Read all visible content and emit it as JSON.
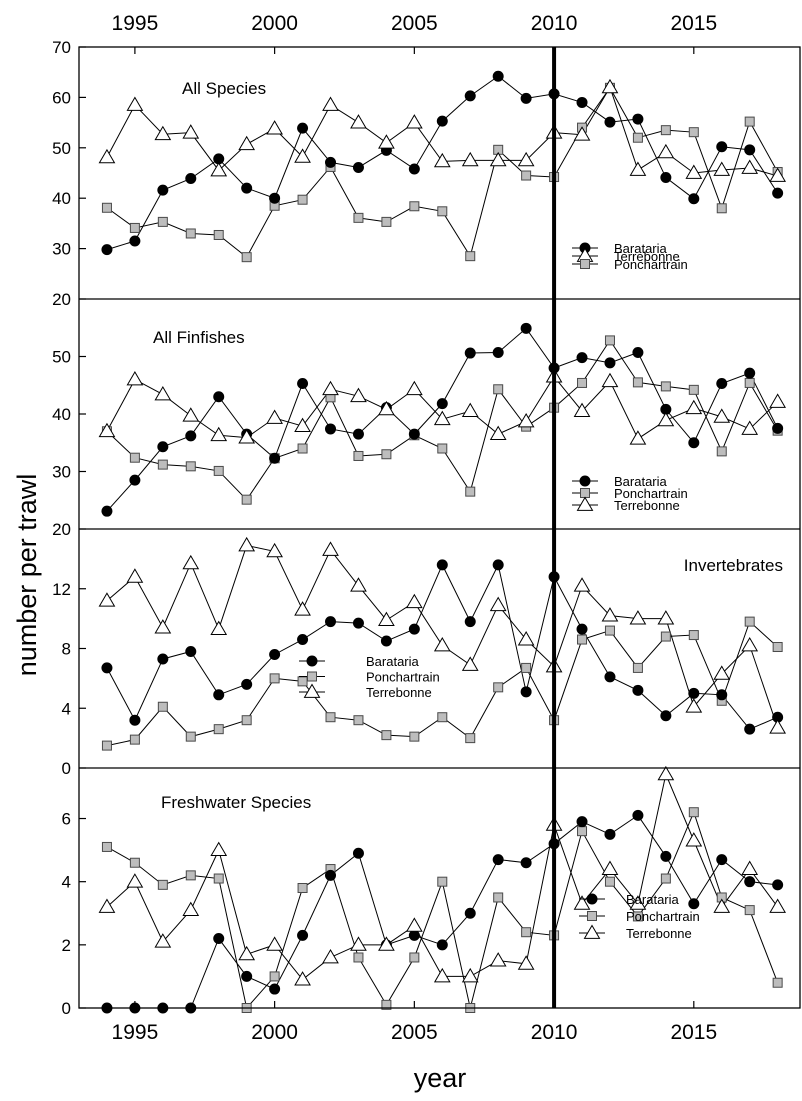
{
  "figure": {
    "ylabel": "number per trawl",
    "xlabel": "year",
    "x_ticks": [
      1995,
      2000,
      2005,
      2010,
      2015
    ],
    "xlim": [
      1993,
      2018.8
    ],
    "reference_year": 2010
  },
  "chart_data": [
    {
      "type": "line",
      "title": "All Species",
      "legend_position": "right",
      "ylim": [
        20,
        70
      ],
      "y_ticks": [
        20,
        30,
        40,
        50,
        60,
        70
      ],
      "x": [
        1994,
        1995,
        1996,
        1997,
        1998,
        1999,
        2000,
        2001,
        2002,
        2003,
        2004,
        2005,
        2006,
        2007,
        2008,
        2009,
        2010,
        2011,
        2012,
        2013,
        2014,
        2015,
        2016,
        2017,
        2018
      ],
      "series": [
        {
          "name": "Barataria",
          "marker": "circle",
          "values": [
            29.8,
            31.5,
            41.6,
            43.9,
            47.8,
            42,
            40,
            53.9,
            47.1,
            46.1,
            49.5,
            45.8,
            55.3,
            60.3,
            64.2,
            59.8,
            60.7,
            59,
            55.1,
            55.7,
            44.1,
            39.9,
            50.2,
            49.6,
            41
          ]
        },
        {
          "name": "Terrebonne",
          "marker": "triangle",
          "values": [
            48.1,
            58.5,
            52.7,
            53,
            45.5,
            50.7,
            53.8,
            48.2,
            58.5,
            55,
            51,
            55,
            47.3,
            47.5,
            47.5,
            47.5,
            53,
            52.6,
            62,
            45.6,
            49.1,
            45,
            45.6,
            46,
            44.4
          ]
        },
        {
          "name": "Ponchartrain",
          "marker": "square",
          "values": [
            38.1,
            34.1,
            35.3,
            33,
            32.7,
            28.3,
            38.5,
            39.7,
            46.2,
            36.1,
            35.3,
            38.4,
            37.4,
            28.5,
            49.6,
            44.5,
            44.2,
            54,
            61.9,
            52,
            53.5,
            53.1,
            38,
            55.2,
            45.2
          ]
        }
      ]
    },
    {
      "type": "line",
      "title": "All Finfishes",
      "legend_position": "right",
      "ylim": [
        20,
        60
      ],
      "y_ticks": [
        20,
        30,
        40,
        50
      ],
      "x": [
        1994,
        1995,
        1996,
        1997,
        1998,
        1999,
        2000,
        2001,
        2002,
        2003,
        2004,
        2005,
        2006,
        2007,
        2008,
        2009,
        2010,
        2011,
        2012,
        2013,
        2014,
        2015,
        2016,
        2017,
        2018
      ],
      "series": [
        {
          "name": "Barataria",
          "marker": "circle",
          "values": [
            23.1,
            28.5,
            34.3,
            36.2,
            43,
            36.5,
            32.3,
            45.3,
            37.4,
            36.5,
            41.1,
            36.5,
            41.8,
            50.6,
            50.7,
            54.9,
            48,
            49.8,
            48.9,
            50.7,
            40.8,
            35,
            45.3,
            47.1,
            37.5
          ]
        },
        {
          "name": "Ponchartrain",
          "marker": "square",
          "values": [
            37,
            32.4,
            31.2,
            30.9,
            30.1,
            25.1,
            32.3,
            34,
            42.9,
            32.7,
            33,
            36.3,
            34,
            26.5,
            44.3,
            37.8,
            41.1,
            45.4,
            52.8,
            45.5,
            44.8,
            44.2,
            33.5,
            45.4,
            37.1
          ]
        },
        {
          "name": "Terrebonne",
          "marker": "triangle",
          "values": [
            37,
            46,
            43.4,
            39.7,
            36.3,
            35.9,
            39.3,
            37.9,
            44.3,
            43.1,
            40.8,
            44.3,
            39.1,
            40.5,
            36.5,
            38.7,
            46.5,
            40.5,
            45.7,
            35.7,
            38.9,
            41,
            39.5,
            37.4,
            42.1
          ]
        }
      ]
    },
    {
      "type": "line",
      "title": "Invertebrates",
      "legend_position": "center",
      "ylim": [
        0,
        16
      ],
      "y_ticks": [
        0,
        4,
        8,
        12
      ],
      "x": [
        1994,
        1995,
        1996,
        1997,
        1998,
        1999,
        2000,
        2001,
        2002,
        2003,
        2004,
        2005,
        2006,
        2007,
        2008,
        2009,
        2010,
        2011,
        2012,
        2013,
        2014,
        2015,
        2016,
        2017,
        2018
      ],
      "series": [
        {
          "name": "Barataria",
          "marker": "circle",
          "values": [
            6.7,
            3.2,
            7.3,
            7.8,
            4.9,
            5.6,
            7.6,
            8.6,
            9.8,
            9.7,
            8.5,
            9.3,
            13.6,
            9.8,
            13.6,
            5.1,
            12.8,
            9.3,
            6.1,
            5.2,
            3.5,
            5,
            4.9,
            2.6,
            3.4
          ]
        },
        {
          "name": "Ponchartrain",
          "marker": "square",
          "values": [
            1.5,
            1.9,
            4.1,
            2.1,
            2.6,
            3.2,
            6,
            5.8,
            3.4,
            3.2,
            2.2,
            2.1,
            3.4,
            2,
            5.4,
            6.7,
            3.2,
            8.6,
            9.2,
            6.7,
            8.8,
            8.9,
            4.5,
            9.8,
            8.1
          ]
        },
        {
          "name": "Terrebonne",
          "marker": "triangle",
          "values": [
            11.2,
            12.8,
            9.4,
            13.7,
            9.3,
            14.9,
            14.5,
            10.6,
            14.6,
            12.2,
            9.9,
            11.1,
            8.2,
            6.9,
            10.9,
            8.6,
            6.8,
            12.2,
            10.2,
            10,
            10,
            4.1,
            6.3,
            8.2,
            2.7
          ]
        }
      ]
    },
    {
      "type": "line",
      "title": "Freshwater Species",
      "legend_position": "bottom-right",
      "ylim": [
        0,
        7.6
      ],
      "y_ticks": [
        0,
        2,
        4,
        6
      ],
      "x": [
        1994,
        1995,
        1996,
        1997,
        1998,
        1999,
        2000,
        2001,
        2002,
        2003,
        2004,
        2005,
        2006,
        2007,
        2008,
        2009,
        2010,
        2011,
        2012,
        2013,
        2014,
        2015,
        2016,
        2017,
        2018
      ],
      "series": [
        {
          "name": "Barataria",
          "marker": "circle",
          "values": [
            0,
            0,
            0,
            0,
            2.2,
            1,
            0.6,
            2.3,
            4.2,
            4.9,
            2,
            2.3,
            2,
            3,
            4.7,
            4.6,
            5.2,
            5.9,
            5.5,
            6.1,
            4.8,
            3.3,
            4.7,
            4,
            3.9
          ]
        },
        {
          "name": "Ponchartrain",
          "marker": "square",
          "values": [
            5.1,
            4.6,
            3.9,
            4.2,
            4.1,
            0,
            1,
            3.8,
            4.4,
            1.6,
            0.1,
            1.6,
            4,
            0,
            3.5,
            2.4,
            2.3,
            5.6,
            4,
            2.9,
            4.1,
            6.2,
            3.5,
            3.1,
            0.8
          ]
        },
        {
          "name": "Terrebonne",
          "marker": "triangle",
          "values": [
            3.2,
            4,
            2.1,
            3.1,
            5,
            1.7,
            2,
            0.9,
            1.6,
            2,
            2,
            2.6,
            1,
            1,
            1.5,
            1.4,
            5.8,
            3.3,
            4.4,
            3.3,
            7.4,
            5.3,
            3.2,
            4.4,
            3.2
          ]
        }
      ]
    }
  ]
}
